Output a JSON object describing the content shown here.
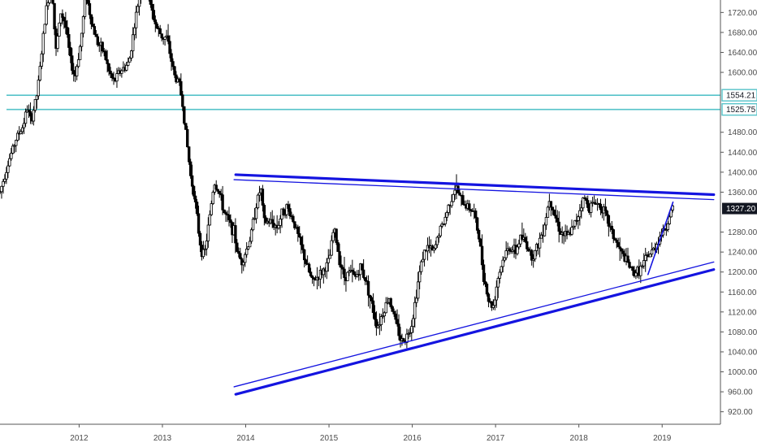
{
  "chart_data": {
    "type": "candlestick",
    "grid": false,
    "colors": {
      "candle": "#000000",
      "horizontal_lines": "#56c3c9",
      "trendlines": "#1414e0",
      "axis": "#555555",
      "last_price_bg": "#131722"
    },
    "x_axis": {
      "ticks": [
        "2012",
        "2013",
        "2014",
        "2015",
        "2016",
        "2017",
        "2018",
        "2019"
      ],
      "range": [
        2011.05,
        2019.7
      ]
    },
    "y_axis": {
      "ticks": [
        "920.00",
        "960.00",
        "1000.00",
        "1040.00",
        "1080.00",
        "1120.00",
        "1160.00",
        "1200.00",
        "1240.00",
        "1280.00",
        "1360.00",
        "1400.00",
        "1440.00",
        "1480.00",
        "1600.00",
        "1640.00",
        "1680.00",
        "1720.00"
      ],
      "range": [
        895,
        1745
      ]
    },
    "horizontal_levels": [
      {
        "value": 1554.21,
        "label": "1554.21"
      },
      {
        "value": 1525.75,
        "label": "1525.75"
      }
    ],
    "last_price": {
      "value": 1327.2,
      "label": "1327.20"
    },
    "trendlines": [
      {
        "points": [
          [
            2013.88,
            1395
          ],
          [
            2019.62,
            1355
          ]
        ],
        "width": 3.2
      },
      {
        "points": [
          [
            2013.86,
            1385
          ],
          [
            2019.62,
            1345
          ]
        ],
        "width": 1.3
      },
      {
        "points": [
          [
            2013.88,
            955
          ],
          [
            2019.62,
            1205
          ]
        ],
        "width": 3.2
      },
      {
        "points": [
          [
            2013.86,
            970
          ],
          [
            2019.62,
            1220
          ]
        ],
        "width": 1.3
      },
      {
        "points": [
          [
            2018.83,
            1195
          ],
          [
            2019.13,
            1340
          ]
        ],
        "width": 1.6
      }
    ],
    "price_path": [
      [
        2011.05,
        1360
      ],
      [
        2011.15,
        1420
      ],
      [
        2011.25,
        1470
      ],
      [
        2011.32,
        1490
      ],
      [
        2011.38,
        1530
      ],
      [
        2011.42,
        1500
      ],
      [
        2011.5,
        1560
      ],
      [
        2011.55,
        1640
      ],
      [
        2011.6,
        1720
      ],
      [
        2011.67,
        1790
      ],
      [
        2011.72,
        1640
      ],
      [
        2011.78,
        1720
      ],
      [
        2011.83,
        1700
      ],
      [
        2011.9,
        1620
      ],
      [
        2011.95,
        1590
      ],
      [
        2012.02,
        1660
      ],
      [
        2012.08,
        1760
      ],
      [
        2012.15,
        1700
      ],
      [
        2012.22,
        1660
      ],
      [
        2012.3,
        1640
      ],
      [
        2012.36,
        1600
      ],
      [
        2012.42,
        1580
      ],
      [
        2012.48,
        1600
      ],
      [
        2012.55,
        1610
      ],
      [
        2012.6,
        1620
      ],
      [
        2012.67,
        1700
      ],
      [
        2012.73,
        1760
      ],
      [
        2012.8,
        1780
      ],
      [
        2012.86,
        1730
      ],
      [
        2012.93,
        1690
      ],
      [
        2013.0,
        1670
      ],
      [
        2013.05,
        1670
      ],
      [
        2013.1,
        1630
      ],
      [
        2013.15,
        1590
      ],
      [
        2013.2,
        1580
      ],
      [
        2013.24,
        1540
      ],
      [
        2013.3,
        1450
      ],
      [
        2013.34,
        1390
      ],
      [
        2013.38,
        1360
      ],
      [
        2013.42,
        1300
      ],
      [
        2013.46,
        1250
      ],
      [
        2013.5,
        1230
      ],
      [
        2013.56,
        1300
      ],
      [
        2013.62,
        1380
      ],
      [
        2013.68,
        1360
      ],
      [
        2013.74,
        1320
      ],
      [
        2013.8,
        1300
      ],
      [
        2013.86,
        1280
      ],
      [
        2013.9,
        1240
      ],
      [
        2013.95,
        1220
      ],
      [
        2014.0,
        1240
      ],
      [
        2014.06,
        1270
      ],
      [
        2014.12,
        1330
      ],
      [
        2014.18,
        1370
      ],
      [
        2014.22,
        1300
      ],
      [
        2014.3,
        1300
      ],
      [
        2014.38,
        1290
      ],
      [
        2014.44,
        1320
      ],
      [
        2014.5,
        1330
      ],
      [
        2014.58,
        1300
      ],
      [
        2014.65,
        1260
      ],
      [
        2014.72,
        1220
      ],
      [
        2014.8,
        1180
      ],
      [
        2014.86,
        1190
      ],
      [
        2014.92,
        1200
      ],
      [
        2015.0,
        1220
      ],
      [
        2015.06,
        1290
      ],
      [
        2015.12,
        1230
      ],
      [
        2015.18,
        1190
      ],
      [
        2015.25,
        1200
      ],
      [
        2015.32,
        1190
      ],
      [
        2015.38,
        1210
      ],
      [
        2015.45,
        1180
      ],
      [
        2015.52,
        1130
      ],
      [
        2015.58,
        1090
      ],
      [
        2015.65,
        1120
      ],
      [
        2015.72,
        1150
      ],
      [
        2015.8,
        1100
      ],
      [
        2015.87,
        1060
      ],
      [
        2015.93,
        1070
      ],
      [
        2016.0,
        1100
      ],
      [
        2016.06,
        1170
      ],
      [
        2016.12,
        1230
      ],
      [
        2016.18,
        1250
      ],
      [
        2016.26,
        1240
      ],
      [
        2016.32,
        1280
      ],
      [
        2016.38,
        1300
      ],
      [
        2016.45,
        1340
      ],
      [
        2016.52,
        1370
      ],
      [
        2016.6,
        1340
      ],
      [
        2016.68,
        1330
      ],
      [
        2016.74,
        1320
      ],
      [
        2016.8,
        1270
      ],
      [
        2016.86,
        1190
      ],
      [
        2016.92,
        1140
      ],
      [
        2016.97,
        1130
      ],
      [
        2017.03,
        1190
      ],
      [
        2017.1,
        1230
      ],
      [
        2017.17,
        1250
      ],
      [
        2017.24,
        1240
      ],
      [
        2017.3,
        1270
      ],
      [
        2017.36,
        1260
      ],
      [
        2017.44,
        1230
      ],
      [
        2017.5,
        1250
      ],
      [
        2017.58,
        1290
      ],
      [
        2017.65,
        1350
      ],
      [
        2017.7,
        1320
      ],
      [
        2017.78,
        1280
      ],
      [
        2017.86,
        1270
      ],
      [
        2017.94,
        1290
      ],
      [
        2018.0,
        1320
      ],
      [
        2018.06,
        1350
      ],
      [
        2018.12,
        1330
      ],
      [
        2018.2,
        1340
      ],
      [
        2018.28,
        1330
      ],
      [
        2018.35,
        1300
      ],
      [
        2018.42,
        1270
      ],
      [
        2018.5,
        1240
      ],
      [
        2018.58,
        1220
      ],
      [
        2018.64,
        1200
      ],
      [
        2018.7,
        1200
      ],
      [
        2018.76,
        1210
      ],
      [
        2018.82,
        1230
      ],
      [
        2018.88,
        1240
      ],
      [
        2018.94,
        1260
      ],
      [
        2019.0,
        1280
      ],
      [
        2019.05,
        1290
      ],
      [
        2019.1,
        1320
      ],
      [
        2019.14,
        1327
      ]
    ]
  }
}
